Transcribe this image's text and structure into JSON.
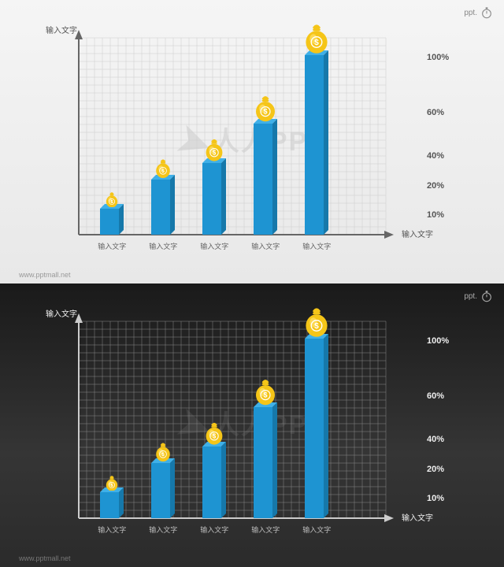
{
  "logo_text": "ppt.",
  "watermark_text": "人人PPT",
  "url_text": "www.pptmall.net",
  "chart": {
    "type": "bar",
    "y_axis_title": "输入文字",
    "x_axis_title": "输入文字",
    "categories": [
      "输入文字",
      "输入文字",
      "输入文字",
      "输入文字",
      "输入文字"
    ],
    "values": [
      15,
      32,
      42,
      65,
      105
    ],
    "max_value": 115,
    "y_ticks": [
      {
        "label": "10%",
        "pos": 10
      },
      {
        "label": "20%",
        "pos": 25
      },
      {
        "label": "40%",
        "pos": 40
      },
      {
        "label": "60%",
        "pos": 62
      },
      {
        "label": "100%",
        "pos": 90
      }
    ],
    "bar_color_front": "#1e94d2",
    "bar_color_side": "#1678aa",
    "bar_color_top": "#3fb0e8",
    "bar_width_ratio": 0.55,
    "bag_base_size": 18,
    "bag_size_step": 4,
    "bag_body_color": "#f5c518",
    "bag_highlight_color": "#ffe169",
    "bag_symbol_color": "#ffffff",
    "grid_step": 10,
    "axis_label_fontsize": 10,
    "tick_fontsize": 11
  },
  "panels": [
    {
      "theme": "light",
      "grid_color": "#cccccc",
      "axis_color": "#666666",
      "bg": "#f0f0f0",
      "text_color": "#555555"
    },
    {
      "theme": "dark",
      "grid_color": "#888888",
      "axis_color": "#cccccc",
      "bg": "#2b2b2b",
      "text_color": "#eeeeee"
    }
  ]
}
